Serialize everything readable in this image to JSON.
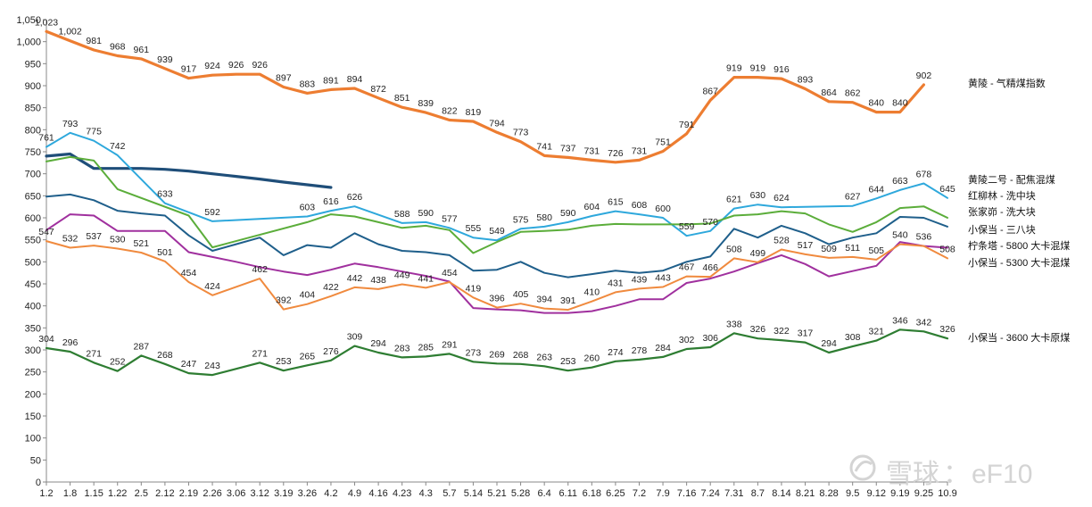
{
  "watermark": {
    "brand": "雪球",
    "separator": "：",
    "handle": "eF10"
  },
  "chart_data": {
    "type": "line",
    "title": "",
    "xlabel": "",
    "ylabel": "",
    "ylim": [
      0,
      1050
    ],
    "ytick_step": 50,
    "grid": false,
    "legend": "right",
    "categories": [
      "1.2",
      "1.8",
      "1.15",
      "1.22",
      "2.5",
      "2.12",
      "2.19",
      "2.26",
      "3.06",
      "3.12",
      "3.19",
      "3.26",
      "4.2",
      "4.9",
      "4.16",
      "4.23",
      "4.3",
      "5.7",
      "5.14",
      "5.21",
      "5.28",
      "6.4",
      "6.11",
      "6.18",
      "6.25",
      "7.2",
      "7.9",
      "7.16",
      "7.24",
      "7.31",
      "8.7",
      "8.14",
      "8.21",
      "8.28",
      "9.5",
      "9.12",
      "9.19",
      "9.25",
      "10.9"
    ],
    "series": [
      {
        "name": "黄陵 - 气精煤指数",
        "color": "#ED7D31",
        "width": 3.2,
        "labeled": true,
        "values": [
          1023,
          1002,
          981,
          968,
          961,
          939,
          917,
          924,
          926,
          926,
          897,
          883,
          891,
          894,
          872,
          851,
          839,
          822,
          819,
          794,
          773,
          741,
          737,
          731,
          726,
          731,
          751,
          791,
          867,
          919,
          919,
          916,
          893,
          864,
          862,
          840,
          840,
          902,
          null
        ]
      },
      {
        "name": "黄陵二号 - 配焦混煤",
        "color": "#1F4E79",
        "width": 3.2,
        "labeled": false,
        "values": [
          740,
          745,
          712,
          712,
          712,
          710,
          706,
          700,
          694,
          688,
          681,
          675,
          669,
          null,
          null,
          null,
          null,
          null,
          null,
          null,
          null,
          null,
          null,
          null,
          null,
          null,
          null,
          null,
          null,
          null,
          null,
          null,
          null,
          null,
          null,
          null,
          null,
          null,
          null
        ]
      },
      {
        "name": "红柳林 - 洗中块",
        "color": "#2EA8DC",
        "width": 2,
        "labeled": true,
        "values": [
          761,
          793,
          775,
          742,
          null,
          633,
          null,
          592,
          null,
          null,
          null,
          603,
          616,
          626,
          null,
          588,
          590,
          577,
          555,
          549,
          575,
          580,
          590,
          604,
          615,
          608,
          600,
          559,
          570,
          621,
          630,
          624,
          null,
          null,
          627,
          644,
          663,
          678,
          645
        ]
      },
      {
        "name": "张家峁 - 洗大块",
        "color": "#5BAD3A",
        "width": 2,
        "labeled": false,
        "values": [
          728,
          738,
          730,
          665,
          null,
          null,
          605,
          533,
          null,
          null,
          null,
          590,
          608,
          603,
          590,
          577,
          582,
          572,
          520,
          545,
          568,
          570,
          573,
          582,
          586,
          585,
          585,
          585,
          587,
          605,
          608,
          615,
          610,
          585,
          568,
          590,
          622,
          626,
          600
        ]
      },
      {
        "name": "小保当 - 三八块",
        "color": "#1F5F8B",
        "width": 2,
        "labeled": false,
        "values": [
          648,
          653,
          640,
          616,
          610,
          605,
          560,
          525,
          540,
          555,
          515,
          538,
          532,
          565,
          540,
          525,
          522,
          515,
          480,
          482,
          500,
          475,
          465,
          472,
          480,
          475,
          480,
          500,
          512,
          575,
          555,
          582,
          565,
          540,
          555,
          565,
          602,
          600,
          580
        ]
      },
      {
        "name": "柠条塔 - 5800 大卡混煤",
        "color": "#A0309E",
        "width": 2,
        "labeled": false,
        "values": [
          572,
          608,
          605,
          570,
          570,
          570,
          522,
          511,
          500,
          488,
          478,
          470,
          482,
          496,
          488,
          478,
          468,
          455,
          395,
          392,
          390,
          384,
          384,
          388,
          400,
          415,
          415,
          452,
          462,
          478,
          497,
          515,
          495,
          467,
          479,
          491,
          545,
          536,
          532
        ]
      },
      {
        "name": "小保当 - 5300 大卡混煤",
        "color": "#F08A3E",
        "width": 2,
        "labeled": true,
        "values": [
          547,
          532,
          537,
          530,
          521,
          501,
          454,
          424,
          null,
          462,
          392,
          404,
          422,
          442,
          438,
          449,
          441,
          454,
          419,
          396,
          405,
          394,
          391,
          410,
          431,
          439,
          443,
          467,
          466,
          508,
          499,
          528,
          517,
          509,
          511,
          505,
          540,
          536,
          508
        ]
      },
      {
        "name": "小保当 - 3600 大卡原煤",
        "color": "#2E7D32",
        "width": 2.2,
        "labeled": true,
        "values": [
          304,
          296,
          271,
          252,
          287,
          268,
          247,
          243,
          null,
          271,
          253,
          265,
          276,
          309,
          294,
          283,
          285,
          291,
          273,
          269,
          268,
          263,
          253,
          260,
          274,
          278,
          284,
          302,
          306,
          338,
          326,
          322,
          317,
          294,
          308,
          321,
          346,
          342,
          326
        ]
      }
    ]
  }
}
